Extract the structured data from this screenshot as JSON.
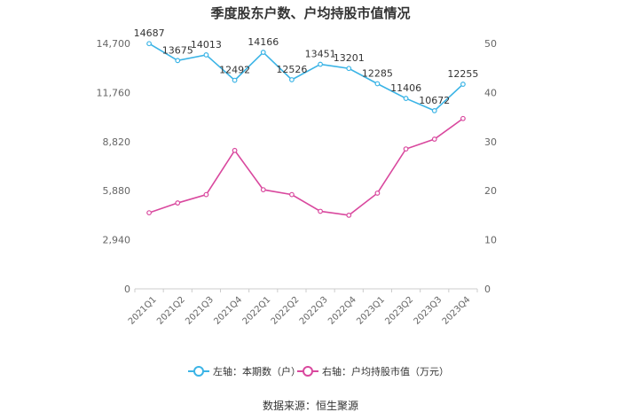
{
  "chart_data": {
    "type": "line",
    "title": "季度股东户数、户均持股市值情况",
    "categories": [
      "2021Q1",
      "2021Q2",
      "2021Q3",
      "2021Q4",
      "2022Q1",
      "2022Q2",
      "2022Q3",
      "2022Q4",
      "2023Q1",
      "2023Q2",
      "2023Q3",
      "2023Q4"
    ],
    "left_axis": {
      "ticks": [
        "0",
        "2,940",
        "5,880",
        "8,820",
        "11,760",
        "14,700"
      ],
      "ylim": [
        0,
        14700
      ]
    },
    "right_axis": {
      "ticks": [
        "0",
        "10",
        "20",
        "30",
        "40",
        "50"
      ],
      "ylim": [
        0,
        50
      ]
    },
    "series": [
      {
        "name": "左轴：本期数（户）",
        "axis": "left",
        "color": "#3bb4e6",
        "values": [
          14687,
          13675,
          14013,
          12492,
          14166,
          12526,
          13451,
          13201,
          12285,
          11406,
          10672,
          12255
        ],
        "labels": [
          "14687",
          "13675",
          "14013",
          "12492",
          "14166",
          "12526",
          "13451",
          "13201",
          "12285",
          "11406",
          "10672",
          "12255"
        ]
      },
      {
        "name": "右轴：户均持股市值（万元）",
        "axis": "right",
        "color": "#d9489e",
        "values": [
          15.5,
          17.5,
          19.2,
          28.2,
          20.2,
          19.2,
          15.8,
          15.0,
          19.5,
          28.5,
          30.5,
          34.7
        ]
      }
    ],
    "grid": false,
    "legend_position": "bottom"
  },
  "source": "数据来源：恒生聚源"
}
